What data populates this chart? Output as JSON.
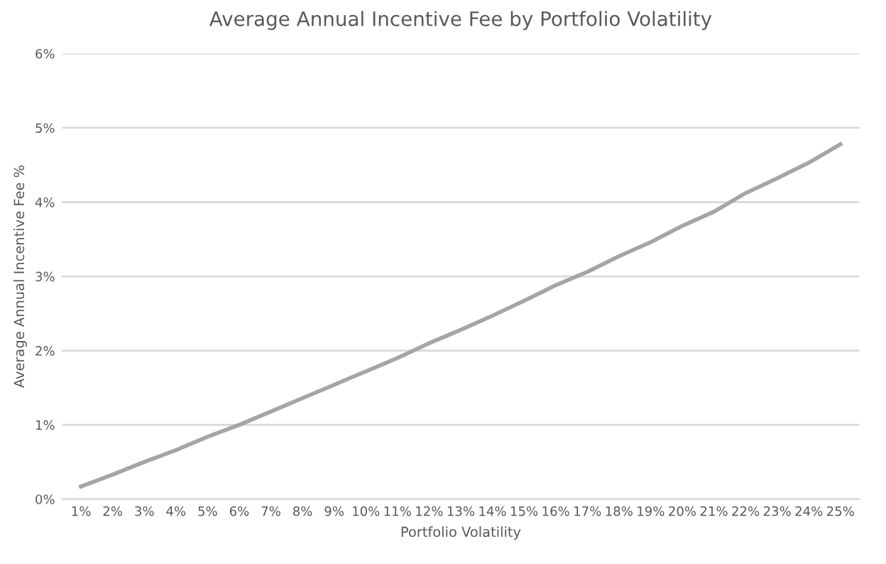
{
  "chart_data": {
    "type": "line",
    "title": "Average Annual Incentive Fee by Portfolio Volatility",
    "xlabel": "Portfolio Volatility",
    "ylabel": "Average Annual Incentive Fee %",
    "categories": [
      "1%",
      "2%",
      "3%",
      "4%",
      "5%",
      "6%",
      "7%",
      "8%",
      "9%",
      "10%",
      "11%",
      "12%",
      "13%",
      "14%",
      "15%",
      "16%",
      "17%",
      "18%",
      "19%",
      "20%",
      "21%",
      "22%",
      "23%",
      "24%",
      "25%"
    ],
    "series": [
      {
        "color": "#a5a5a5",
        "values": [
          0.17,
          0.33,
          0.5,
          0.66,
          0.84,
          1.0,
          1.18,
          1.36,
          1.54,
          1.72,
          1.9,
          2.1,
          2.28,
          2.47,
          2.67,
          2.88,
          3.06,
          3.27,
          3.46,
          3.68,
          3.87,
          4.12,
          4.32,
          4.53,
          4.78
        ]
      }
    ],
    "ylim": [
      0,
      6
    ],
    "yticks": [
      {
        "value": 0,
        "label": "0%"
      },
      {
        "value": 1,
        "label": "1%"
      },
      {
        "value": 2,
        "label": "2%"
      },
      {
        "value": 3,
        "label": "3%"
      },
      {
        "value": 4,
        "label": "4%"
      },
      {
        "value": 5,
        "label": "5%"
      },
      {
        "value": 6,
        "label": "6%"
      }
    ],
    "grid": "y",
    "marker": "none",
    "line_style": "solid"
  }
}
